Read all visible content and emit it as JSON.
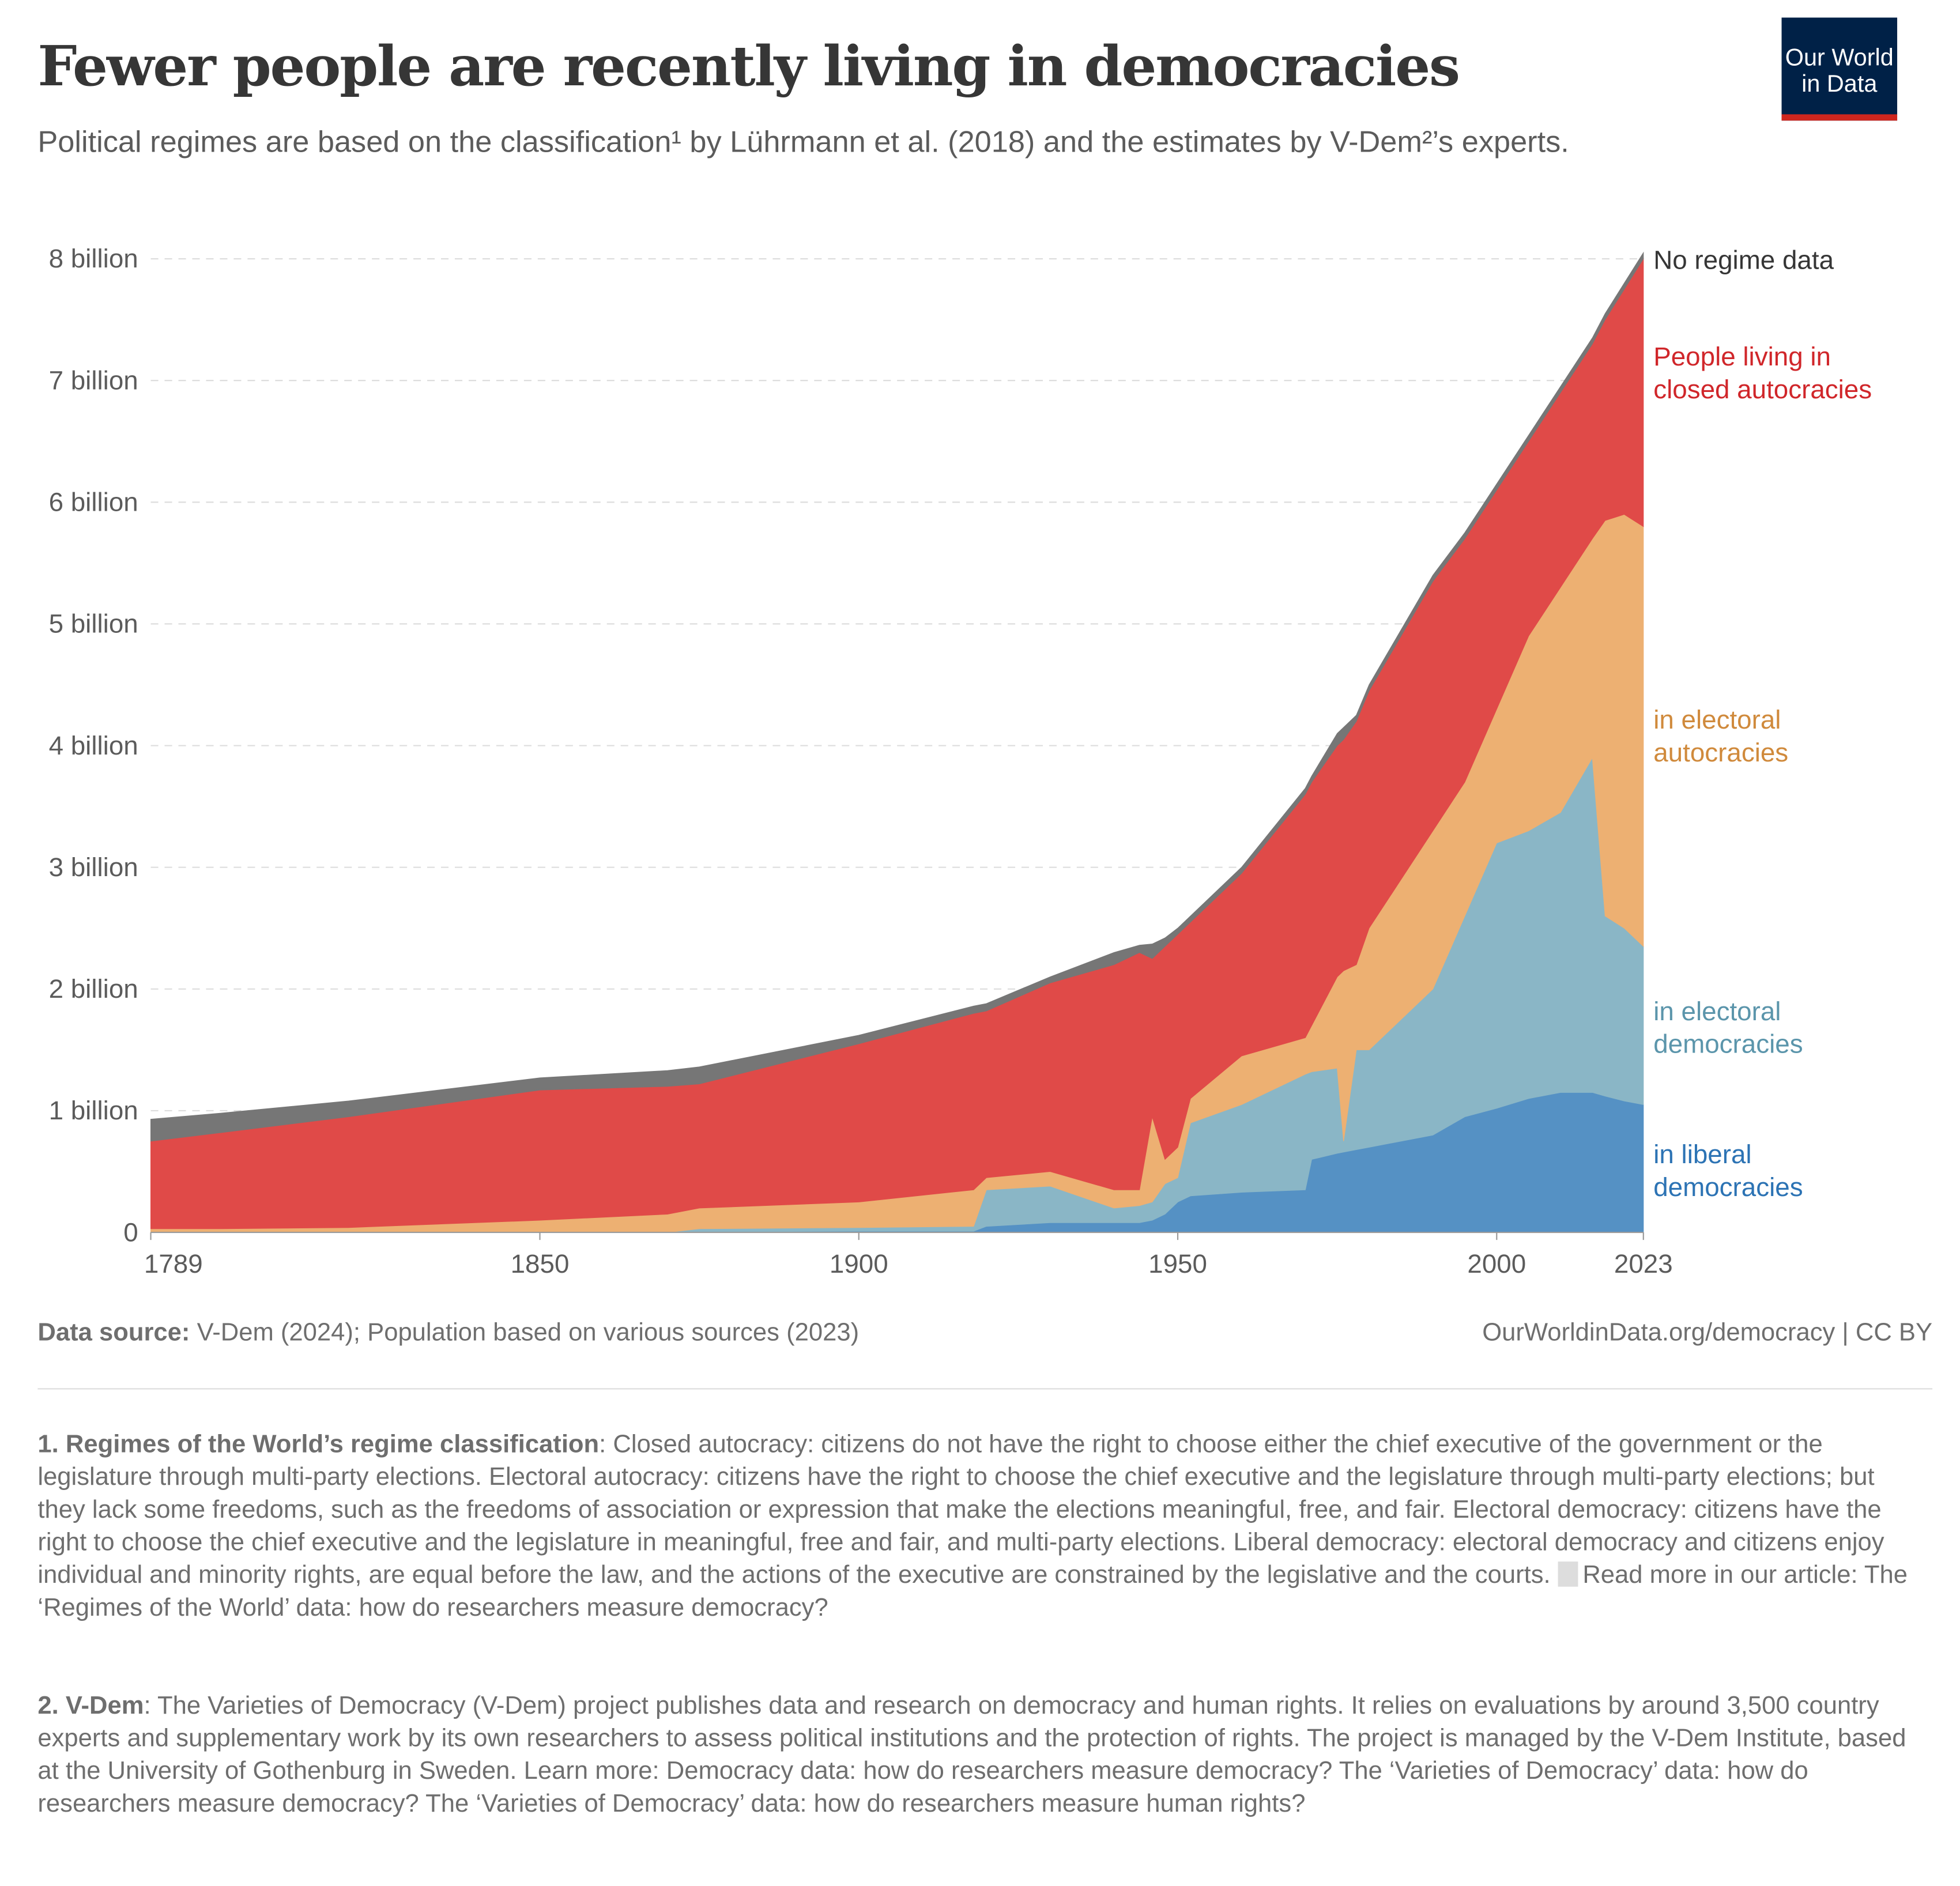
{
  "header": {
    "title": "Fewer people are recently living in democracies",
    "subtitle": "Political regimes are based on the classification¹ by Lührmann et al. (2018) and the estimates by V-Dem²’s experts.",
    "logo": "Our World in Data"
  },
  "chart_data": {
    "type": "area",
    "stacked": true,
    "units": "billion people",
    "x": [
      1789,
      1800,
      1820,
      1850,
      1870,
      1875,
      1900,
      1918,
      1920,
      1930,
      1940,
      1944,
      1946,
      1948,
      1950,
      1952,
      1960,
      1970,
      1971,
      1975,
      1976,
      1978,
      1980,
      1990,
      1995,
      2000,
      2005,
      2010,
      2015,
      2017,
      2020,
      2023
    ],
    "series": [
      {
        "name": "in liberal democracies",
        "color": "#5591c4",
        "values": [
          0,
          0,
          0,
          0,
          0,
          0.005,
          0.01,
          0.01,
          0.05,
          0.08,
          0.08,
          0.08,
          0.1,
          0.15,
          0.25,
          0.3,
          0.33,
          0.35,
          0.6,
          0.65,
          0.66,
          0.68,
          0.7,
          0.8,
          0.95,
          1.02,
          1.1,
          1.15,
          1.15,
          1.12,
          1.08,
          1.05
        ]
      },
      {
        "name": "in electoral democracies",
        "color": "#8ab6c6",
        "values": [
          0,
          0,
          0,
          0,
          0,
          0.025,
          0.03,
          0.04,
          0.3,
          0.3,
          0.12,
          0.14,
          0.15,
          0.25,
          0.2,
          0.6,
          0.72,
          0.95,
          0.72,
          0.7,
          0.09,
          0.82,
          0.8,
          1.2,
          1.65,
          2.18,
          2.2,
          2.3,
          2.75,
          1.48,
          1.42,
          1.3
        ]
      },
      {
        "name": "in electoral autocracies",
        "color": "#edb072",
        "values": [
          0.03,
          0.03,
          0.04,
          0.1,
          0.15,
          0.17,
          0.21,
          0.3,
          0.1,
          0.12,
          0.15,
          0.13,
          0.7,
          0.2,
          0.25,
          0.2,
          0.4,
          0.3,
          0.38,
          0.75,
          1.4,
          0.7,
          1.0,
          1.3,
          1.1,
          1.1,
          1.6,
          1.85,
          1.8,
          3.25,
          3.4,
          3.45
        ]
      },
      {
        "name": "People living in closed autocracies",
        "color": "#e04a48",
        "values": [
          0.72,
          0.79,
          0.91,
          1.07,
          1.05,
          1.02,
          1.3,
          1.45,
          1.37,
          1.55,
          1.85,
          1.95,
          1.3,
          1.75,
          1.75,
          1.45,
          1.5,
          2.0,
          2.0,
          1.9,
          1.9,
          2.0,
          1.95,
          2.05,
          2.0,
          1.8,
          1.6,
          1.6,
          1.6,
          1.65,
          1.85,
          2.2
        ]
      },
      {
        "name": "No regime data",
        "color": "#767676",
        "values": [
          0.18,
          0.16,
          0.13,
          0.1,
          0.13,
          0.14,
          0.07,
          0.06,
          0.06,
          0.05,
          0.1,
          0.06,
          0.12,
          0.07,
          0.05,
          0.05,
          0.05,
          0.05,
          0.05,
          0.1,
          0.1,
          0.05,
          0.05,
          0.05,
          0.05,
          0.05,
          0.05,
          0.05,
          0.05,
          0.05,
          0.05,
          0.05
        ]
      }
    ],
    "labels": [
      {
        "lines": [
          "No regime data"
        ],
        "color": "#363636"
      },
      {
        "lines": [
          "People living in",
          "closed autocracies"
        ],
        "color": "#d0262a"
      },
      {
        "lines": [
          "in electoral",
          "autocracies"
        ],
        "color": "#d08a3c"
      },
      {
        "lines": [
          "in electoral",
          "democracies"
        ],
        "color": "#5b95ab"
      },
      {
        "lines": [
          "in liberal",
          "democracies"
        ],
        "color": "#2c73b4"
      }
    ],
    "yticks": [
      {
        "v": 0,
        "label": "0"
      },
      {
        "v": 1,
        "label": "1 billion"
      },
      {
        "v": 2,
        "label": "2 billion"
      },
      {
        "v": 3,
        "label": "3 billion"
      },
      {
        "v": 4,
        "label": "4 billion"
      },
      {
        "v": 5,
        "label": "5 billion"
      },
      {
        "v": 6,
        "label": "6 billion"
      },
      {
        "v": 7,
        "label": "7 billion"
      },
      {
        "v": 8,
        "label": "8 billion"
      }
    ],
    "xticks": [
      {
        "v": 1789,
        "label": "1789"
      },
      {
        "v": 1850,
        "label": "1850"
      },
      {
        "v": 1900,
        "label": "1900"
      },
      {
        "v": 1950,
        "label": "1950"
      },
      {
        "v": 2000,
        "label": "2000"
      },
      {
        "v": 2023,
        "label": "2023"
      }
    ],
    "xlim": [
      1789,
      2023
    ],
    "ylim": [
      0,
      8
    ],
    "grid": "horizontal dashed"
  },
  "footer": {
    "source_label": "Data source:",
    "source": "V-Dem (2024); Population based on various sources (2023)",
    "credit": "OurWorldinData.org/democracy | CC BY",
    "note1_label": "1. Regimes of the World’s regime classification",
    "note1_text": ": Closed autocracy: citizens do not have the right to choose either the chief executive of the government or the legislature through multi-party elections. Electoral autocracy: citizens have the right to choose the chief executive and the legislature through multi-party elections; but they lack some freedoms, such as the freedoms of association or expression that make the elections meaningful, free, and fair. Electoral democracy: citizens have the right to choose the chief executive and the legislature in meaningful, free and fair, and multi-party elections. Liberal democracy: electoral democracy and citizens enjoy individual and minority rights, are equal before the law, and the actions of the executive are constrained by the legislative and the courts. ",
    "note1_link": "Read more in our article: The ‘Regimes of the World’ data: how do researchers measure democracy?",
    "note2_label": "2. V-Dem",
    "note2_text": ": The Varieties of Democracy (V-Dem) project publishes data and research on democracy and human rights. It relies on evaluations by around 3,500 country experts and supplementary work by its own researchers to assess political institutions and the protection of rights. The project is managed by the V-Dem Institute, based at the University of Gothenburg in Sweden. Learn more: Democracy data: how do researchers measure democracy? The ‘Varieties of Democracy’ data: how do researchers measure democracy? The ‘Varieties of Democracy’ data: how do researchers measure human rights?"
  }
}
